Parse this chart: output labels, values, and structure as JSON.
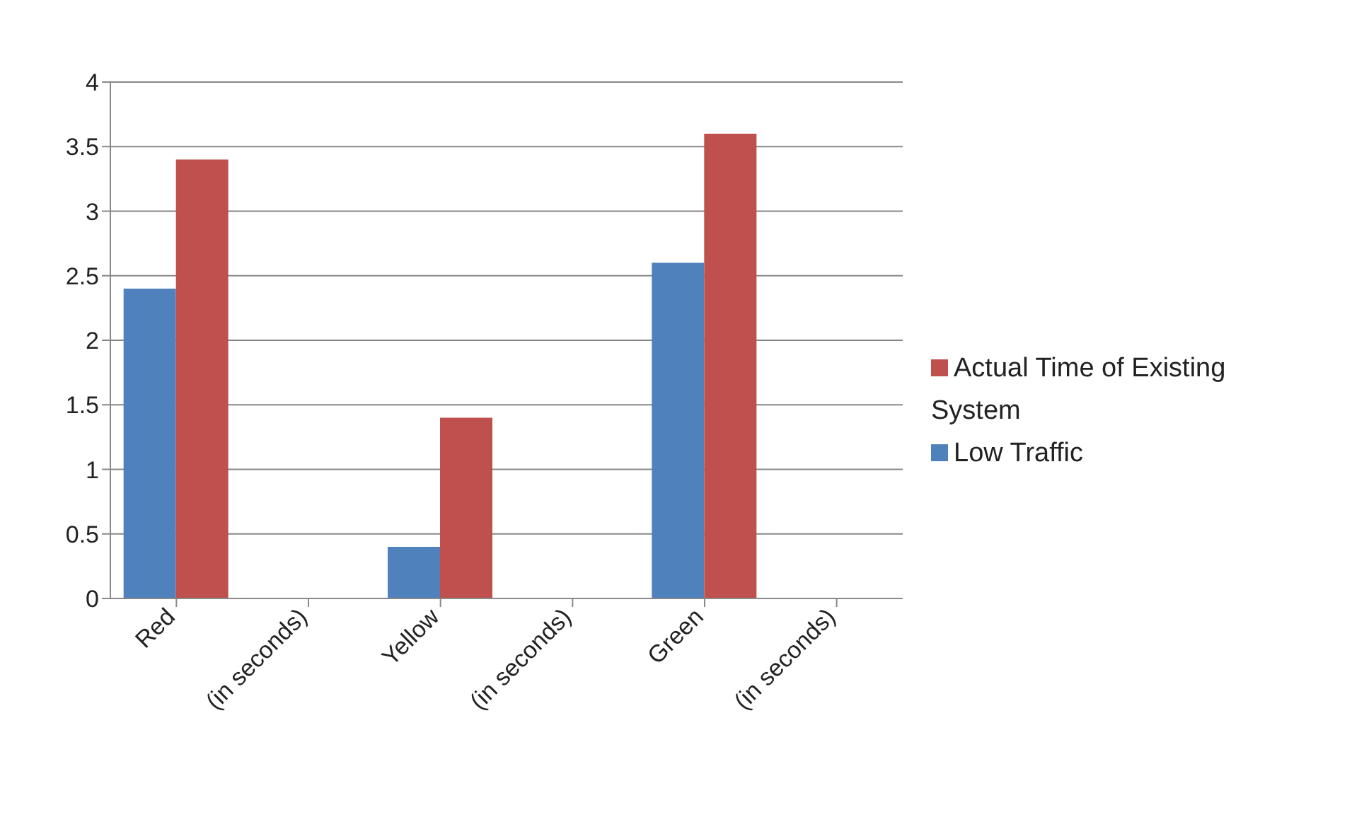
{
  "chart_data": {
    "type": "bar",
    "categories": [
      "Red",
      "(in seconds)",
      "Yellow",
      "(in seconds)",
      "Green",
      "(in seconds)"
    ],
    "series": [
      {
        "name": "Low Traffic",
        "color": "#4f81bd",
        "values": [
          2.4,
          null,
          0.4,
          null,
          2.6,
          null
        ]
      },
      {
        "name": "Actual Time of Existing System",
        "color": "#c0504d",
        "values": [
          3.4,
          null,
          1.4,
          null,
          3.6,
          null
        ]
      }
    ],
    "ylim": [
      0,
      4
    ],
    "yticks": [
      0,
      0.5,
      1,
      1.5,
      2,
      2.5,
      3,
      3.5,
      4
    ],
    "grid": "y",
    "legend": "right"
  }
}
